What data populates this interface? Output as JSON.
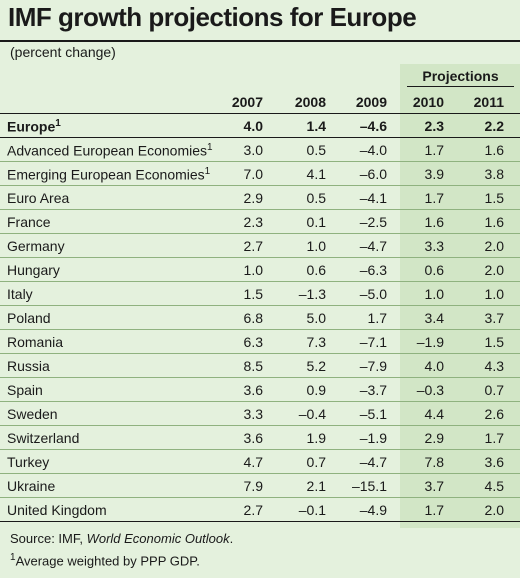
{
  "title": "IMF growth projections for Europe",
  "subtitle": "(percent change)",
  "projections_label": "Projections",
  "source_prefix": "Source: IMF, ",
  "source_publication": "World Economic Outlook",
  "source_suffix": ".",
  "footnote_marker": "1",
  "footnote_text": "Average weighted by PPP GDP.",
  "chart_data": {
    "type": "table",
    "title": "IMF growth projections for Europe",
    "subtitle": "(percent change)",
    "columns": [
      "2007",
      "2008",
      "2009",
      "2010",
      "2011"
    ],
    "projection_columns": [
      "2010",
      "2011"
    ],
    "rows": [
      {
        "label": "Europe",
        "sup": "1",
        "values": [
          "4.0",
          "1.4",
          "–4.6",
          "2.3",
          "2.2"
        ],
        "bold": true
      },
      {
        "label": "Advanced European Economies",
        "sup": "1",
        "values": [
          "3.0",
          "0.5",
          "–4.0",
          "1.7",
          "1.6"
        ]
      },
      {
        "label": "Emerging European Economies",
        "sup": "1",
        "values": [
          "7.0",
          "4.1",
          "–6.0",
          "3.9",
          "3.8"
        ]
      },
      {
        "label": "Euro Area",
        "sup": "",
        "values": [
          "2.9",
          "0.5",
          "–4.1",
          "1.7",
          "1.5"
        ]
      },
      {
        "label": "France",
        "sup": "",
        "values": [
          "2.3",
          "0.1",
          "–2.5",
          "1.6",
          "1.6"
        ]
      },
      {
        "label": "Germany",
        "sup": "",
        "values": [
          "2.7",
          "1.0",
          "–4.7",
          "3.3",
          "2.0"
        ]
      },
      {
        "label": "Hungary",
        "sup": "",
        "values": [
          "1.0",
          "0.6",
          "–6.3",
          "0.6",
          "2.0"
        ]
      },
      {
        "label": "Italy",
        "sup": "",
        "values": [
          "1.5",
          "–1.3",
          "–5.0",
          "1.0",
          "1.0"
        ]
      },
      {
        "label": "Poland",
        "sup": "",
        "values": [
          "6.8",
          "5.0",
          "1.7",
          "3.4",
          "3.7"
        ]
      },
      {
        "label": "Romania",
        "sup": "",
        "values": [
          "6.3",
          "7.3",
          "–7.1",
          "–1.9",
          "1.5"
        ]
      },
      {
        "label": "Russia",
        "sup": "",
        "values": [
          "8.5",
          "5.2",
          "–7.9",
          "4.0",
          "4.3"
        ]
      },
      {
        "label": "Spain",
        "sup": "",
        "values": [
          "3.6",
          "0.9",
          "–3.7",
          "–0.3",
          "0.7"
        ]
      },
      {
        "label": "Sweden",
        "sup": "",
        "values": [
          "3.3",
          "–0.4",
          "–5.1",
          "4.4",
          "2.6"
        ]
      },
      {
        "label": "Switzerland",
        "sup": "",
        "values": [
          "3.6",
          "1.9",
          "–1.9",
          "2.9",
          "1.7"
        ]
      },
      {
        "label": "Turkey",
        "sup": "",
        "values": [
          "4.7",
          "0.7",
          "–4.7",
          "7.8",
          "3.6"
        ]
      },
      {
        "label": "Ukraine",
        "sup": "",
        "values": [
          "7.9",
          "2.1",
          "–15.1",
          "3.7",
          "4.5"
        ]
      },
      {
        "label": "United Kingdom",
        "sup": "",
        "values": [
          "2.7",
          "–0.1",
          "–4.9",
          "1.7",
          "2.0"
        ]
      }
    ]
  },
  "colors": {
    "background": "#e4f1dd",
    "projection_band": "#d2e6c6",
    "text": "#1a1a1a"
  }
}
